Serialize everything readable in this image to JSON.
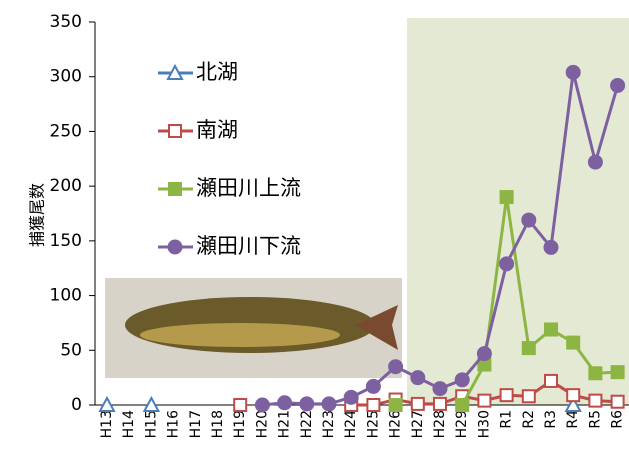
{
  "chart_data": {
    "type": "line",
    "y_label": "捕獲尾数",
    "categories": [
      "H13",
      "H14",
      "H15",
      "H16",
      "H17",
      "H18",
      "H19",
      "H20",
      "H21",
      "H22",
      "H23",
      "H24",
      "H25",
      "H26",
      "H27",
      "H28",
      "H29",
      "H30",
      "R1",
      "R2",
      "R3",
      "R4",
      "R5",
      "R6"
    ],
    "ylim": [
      0,
      350
    ],
    "yticks": [
      0,
      50,
      100,
      150,
      200,
      250,
      300,
      350
    ],
    "grid": false,
    "legend": "upper-left",
    "series": [
      {
        "name": "北湖",
        "color": "#4a7ebb",
        "marker": "triangle",
        "filled": false,
        "values": [
          0,
          null,
          0,
          null,
          null,
          null,
          null,
          null,
          null,
          null,
          null,
          null,
          null,
          null,
          null,
          null,
          null,
          null,
          null,
          null,
          null,
          0,
          null,
          null
        ]
      },
      {
        "name": "南湖",
        "color": "#be4b48",
        "marker": "square",
        "filled": false,
        "values": [
          null,
          null,
          null,
          null,
          null,
          null,
          0,
          null,
          null,
          null,
          null,
          0,
          0,
          5,
          1,
          1,
          8,
          4,
          9,
          8,
          22,
          9,
          4,
          3
        ]
      },
      {
        "name": "瀬田川上流",
        "color": "#8cb543",
        "marker": "square",
        "filled": true,
        "values": [
          null,
          null,
          null,
          null,
          null,
          null,
          null,
          null,
          null,
          null,
          null,
          null,
          null,
          0,
          null,
          null,
          0,
          37,
          190,
          52,
          69,
          57,
          29,
          30
        ]
      },
      {
        "name": "瀬田川下流",
        "color": "#7d60a0",
        "marker": "circle",
        "filled": true,
        "values": [
          null,
          null,
          null,
          null,
          null,
          null,
          null,
          0,
          2,
          1,
          1,
          7,
          17,
          35,
          25,
          15,
          23,
          47,
          129,
          169,
          144,
          304,
          222,
          292
        ]
      }
    ]
  }
}
